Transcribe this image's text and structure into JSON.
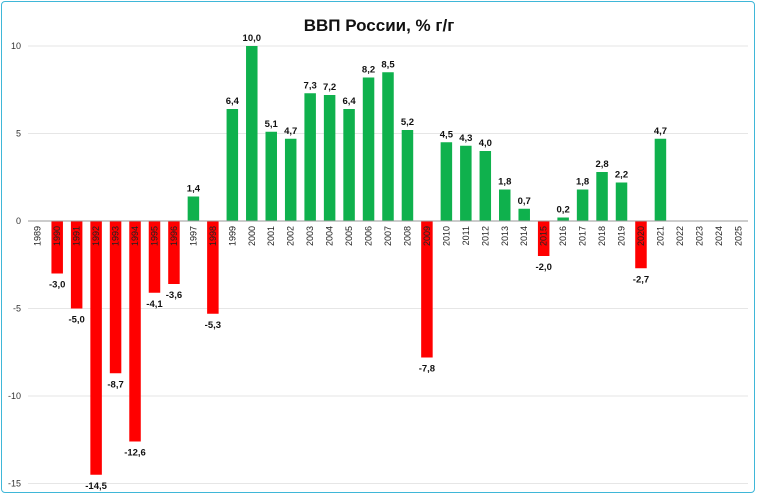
{
  "chart_data": {
    "type": "bar",
    "title": "ВВП России, % г/г",
    "xlabel": "",
    "ylabel": "",
    "ylim": [
      -15,
      10
    ],
    "yticks": [
      10,
      5,
      0,
      -5,
      -10,
      -15
    ],
    "grid": true,
    "legend": "none",
    "categories": [
      "1989",
      "1990",
      "1991",
      "1992",
      "1993",
      "1994",
      "1995",
      "1996",
      "1997",
      "1998",
      "1999",
      "2000",
      "2001",
      "2002",
      "2003",
      "2004",
      "2005",
      "2006",
      "2007",
      "2008",
      "2009",
      "2010",
      "2011",
      "2012",
      "2013",
      "2014",
      "2015",
      "2016",
      "2017",
      "2018",
      "2019",
      "2020",
      "2021",
      "2022",
      "2023",
      "2024",
      "2025"
    ],
    "values": [
      null,
      -3.0,
      -5.0,
      -14.5,
      -8.7,
      -12.6,
      -4.1,
      -3.6,
      1.4,
      -5.3,
      6.4,
      10.0,
      5.1,
      4.7,
      7.3,
      7.2,
      6.4,
      8.2,
      8.5,
      5.2,
      -7.8,
      4.5,
      4.3,
      4.0,
      1.8,
      0.7,
      -2.0,
      0.2,
      1.8,
      2.8,
      2.2,
      -2.7,
      4.7,
      null,
      null,
      null,
      null
    ],
    "data_labels": [
      "",
      "-3,0",
      "-5,0",
      "-14,5",
      "-8,7",
      "-12,6",
      "-4,1",
      "-3,6",
      "1,4",
      "-5,3",
      "6,4",
      "10,0",
      "5,1",
      "4,7",
      "7,3",
      "7,2",
      "6,4",
      "8,2",
      "8,5",
      "5,2",
      "-7,8",
      "4,5",
      "4,3",
      "4,0",
      "1,8",
      "0,7",
      "-2,0",
      "0,2",
      "1,8",
      "2,8",
      "2,2",
      "-2,7",
      "4,7",
      "",
      "",
      "",
      ""
    ],
    "colors": {
      "positive": "#0fb14d",
      "negative": "#ff0000",
      "grid": "#e6e6e6",
      "axis": "#9a9a9a"
    }
  }
}
